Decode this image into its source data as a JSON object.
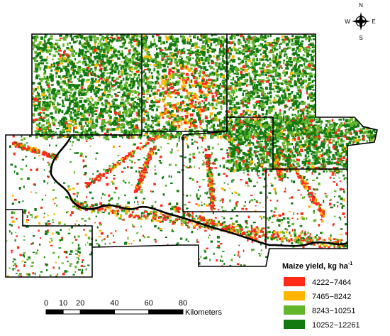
{
  "compass": {
    "north": "N",
    "east": "E",
    "south": "S",
    "west": "W"
  },
  "legend": {
    "title": "Maize yield, kg ha",
    "title_sup": "-1",
    "items": [
      {
        "label": "4222−7464",
        "color": "#ff2a17"
      },
      {
        "label": "7465−8242",
        "color": "#ffb400"
      },
      {
        "label": "8243−10251",
        "color": "#63b52a"
      },
      {
        "label": "10252−12261",
        "color": "#137a12"
      }
    ]
  },
  "scale_bar": {
    "ticks": [
      0,
      10,
      20,
      40,
      60,
      80
    ],
    "unit": "Kilometers"
  }
}
